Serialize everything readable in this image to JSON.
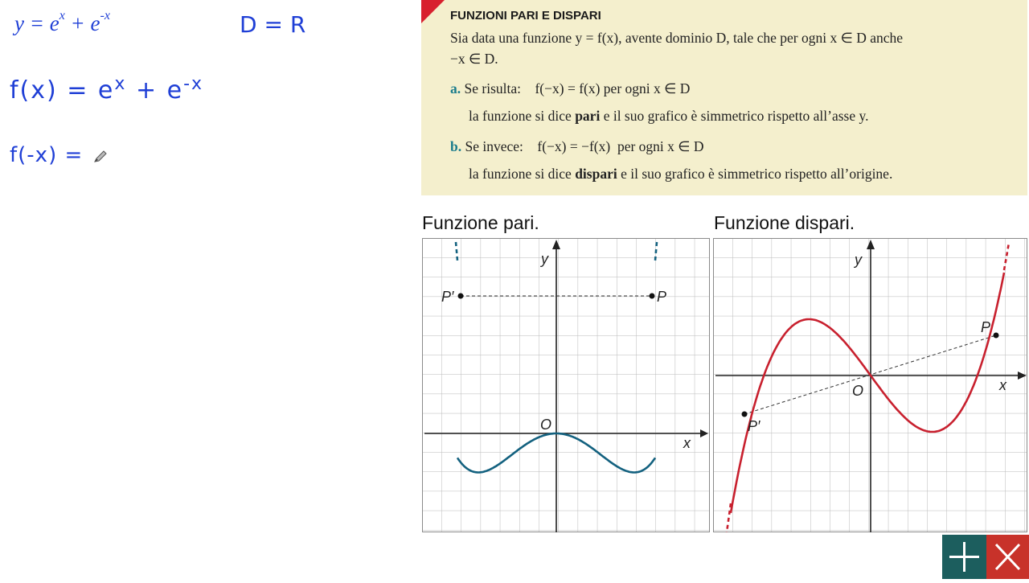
{
  "notes": {
    "eq1_base": "y = e",
    "eq1_exp1": "x",
    "eq1_plus": " + e",
    "eq1_exp2": "-x",
    "domain": "D = R",
    "fx_lhs": "f(x) = e",
    "fx_exp1": "x",
    "fx_plus": " + e",
    "fx_exp2": "-x",
    "fmx": "f(-x) ="
  },
  "box": {
    "title": "FUNZIONI PARI E DISPARI",
    "intro_1": "Sia data una funzione y = f(x), avente dominio D, tale che per ogni x ∈ D anche",
    "intro_2": "−x ∈ D.",
    "a_label": "a.",
    "a_text": "Se risulta:    f(−x) = f(x) per ogni x ∈ D",
    "a_sub_1": "la funzione si dice ",
    "a_sub_bold": "pari",
    "a_sub_2": " e il suo grafico è simmetrico rispetto all’asse y.",
    "b_label": "b.",
    "b_text": "Se invece:    f(−x) = −f(x)  per ogni x ∈ D",
    "b_sub_1": "la funzione si dice ",
    "b_sub_bold": "dispari",
    "b_sub_2": " e il suo grafico è simmetrico rispetto all’origine."
  },
  "graphs": {
    "even_title": "Funzione pari.",
    "odd_title": "Funzione dispari.",
    "label_y": "y",
    "label_x": "x",
    "label_O": "O",
    "label_P": "P",
    "label_Pp": "P′",
    "even_color": "#13617f",
    "odd_color": "#c8202e"
  },
  "buttons": {
    "add": "plus-icon",
    "close": "close-icon",
    "add_color": "#1c5e5e",
    "close_color": "#c8322a"
  }
}
